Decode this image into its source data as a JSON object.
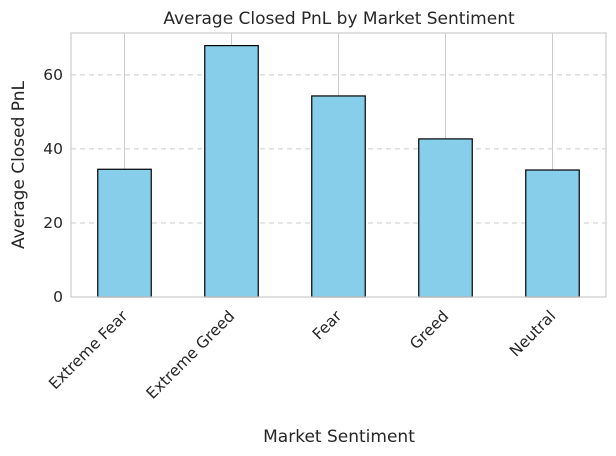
{
  "chart_data": {
    "type": "bar",
    "title": "Average Closed PnL by Market Sentiment",
    "xlabel": "Market Sentiment",
    "ylabel": "Average Closed PnL",
    "categories": [
      "Extreme Fear",
      "Extreme Greed",
      "Fear",
      "Greed",
      "Neutral"
    ],
    "values": [
      34.5,
      67.9,
      54.3,
      42.7,
      34.3
    ],
    "ylim": [
      0,
      71.3
    ],
    "yticks": [
      0,
      20,
      40,
      60
    ],
    "bar_color": "#87ceeb",
    "bar_edge_color": "#000000",
    "grid": {
      "x": "solid",
      "y": "dashed"
    },
    "legend": "none"
  }
}
